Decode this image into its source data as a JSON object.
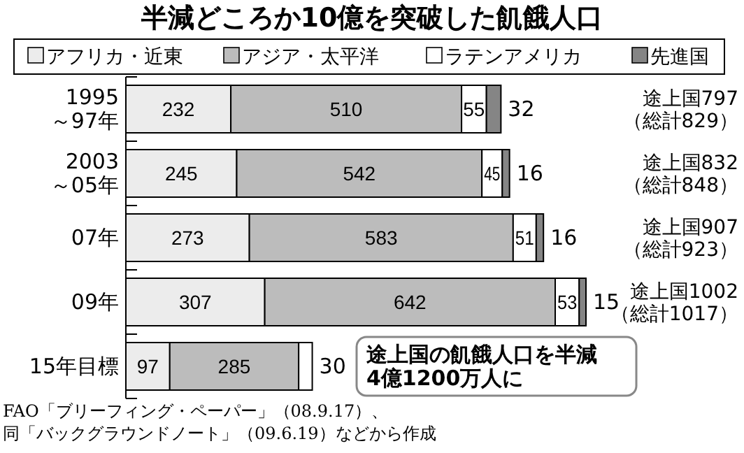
{
  "chart_data": {
    "type": "bar",
    "orientation": "horizontal",
    "stacked": true,
    "title": "半減どころか10億を突破した飢餓人口",
    "categories": [
      "1995\n～97年",
      "2003\n～05年",
      "07年",
      "09年",
      "15年目標"
    ],
    "series": [
      {
        "name": "アフリカ・近東",
        "color": "#ececec",
        "values": [
          232,
          245,
          273,
          307,
          97
        ]
      },
      {
        "name": "アジア・太平洋",
        "color": "#bcbcbc",
        "values": [
          510,
          542,
          583,
          642,
          285
        ]
      },
      {
        "name": "ラテンアメリカ",
        "color": "#ffffff",
        "values": [
          55,
          45,
          51,
          53,
          30
        ]
      },
      {
        "name": "先進国",
        "color": "#858585",
        "values": [
          32,
          16,
          16,
          15,
          null
        ]
      }
    ],
    "data_labels": true,
    "legend": "top",
    "annotations": [
      "途上国797\n（総計829）",
      "途上国832\n（総計848）",
      "途上国907\n（総計923）",
      "途上国1002\n（総計1017）",
      "途上国の飢餓人口を半減\n4億1200万人に",
      "FAO「ブリーフィング・ペーパー」（08.9.17）、",
      "同「バックグラウンドノート」（09.6.19）などから作成"
    ]
  }
}
